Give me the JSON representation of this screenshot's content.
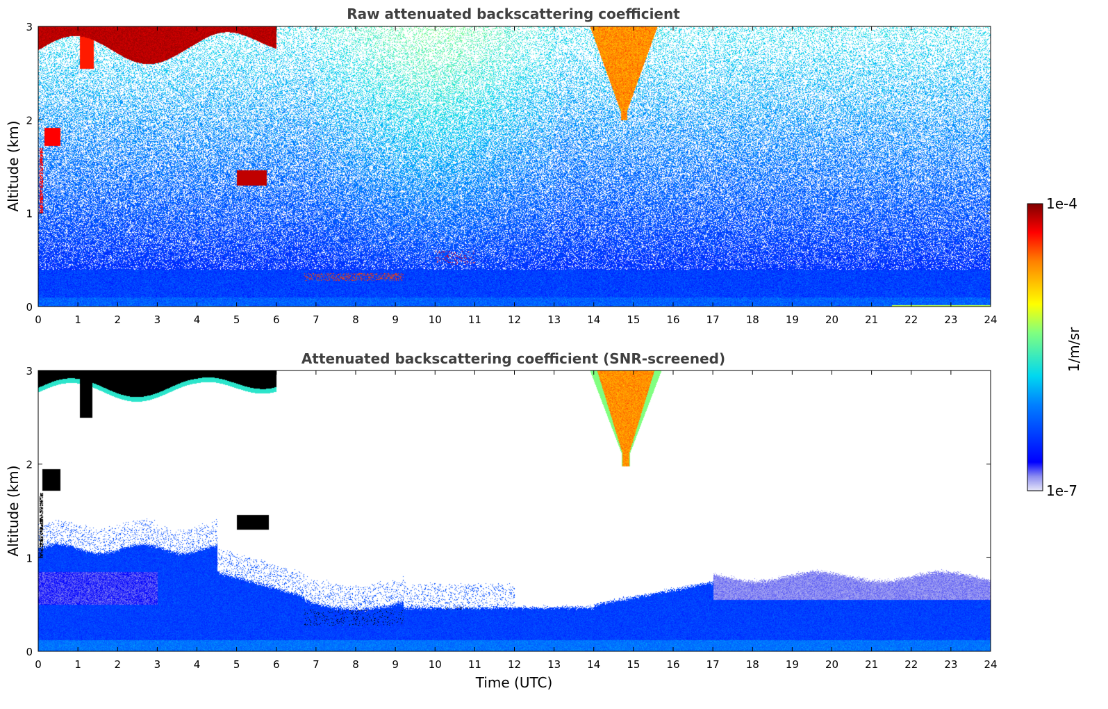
{
  "chart_data": [
    {
      "type": "heatmap",
      "title": "Raw attenuated backscattering coefficient",
      "xlabel": "",
      "ylabel": "Altitude (km)",
      "xlim": [
        0,
        24
      ],
      "ylim": [
        0,
        3
      ],
      "x_ticks": [
        "0",
        "1",
        "2",
        "3",
        "4",
        "5",
        "6",
        "7",
        "8",
        "9",
        "10",
        "11",
        "12",
        "13",
        "14",
        "15",
        "16",
        "17",
        "18",
        "19",
        "20",
        "21",
        "22",
        "23",
        "24"
      ],
      "y_ticks": [
        "0",
        "1",
        "2",
        "3"
      ],
      "features": [
        {
          "t": [
            0.0,
            6.0
          ],
          "z": [
            2.75,
            3.0
          ],
          "level": 0.95,
          "note": "dense cloud near 3 km"
        },
        {
          "t": [
            14.0,
            15.7
          ],
          "z": [
            2.0,
            3.0
          ],
          "level": 0.8,
          "note": "precipitating cloud, orange-red"
        },
        {
          "t": [
            5.0,
            5.7
          ],
          "z": [
            1.3,
            1.45
          ],
          "level": 0.95,
          "note": "small cloud near 1.4 km"
        },
        {
          "t": [
            0.1,
            0.6
          ],
          "z": [
            1.7,
            1.9
          ],
          "level": 0.9,
          "note": "cloud near 1.8 km"
        },
        {
          "t": [
            0.0,
            24.0
          ],
          "z": [
            0.0,
            0.4
          ],
          "level": 0.2,
          "note": "boundary-layer aerosol, blue"
        }
      ]
    },
    {
      "type": "heatmap",
      "title": "Attenuated backscattering coefficient (SNR-screened)",
      "xlabel": "Time (UTC)",
      "ylabel": "Altitude (km)",
      "xlim": [
        0,
        24
      ],
      "ylim": [
        0,
        3
      ],
      "x_ticks": [
        "0",
        "1",
        "2",
        "3",
        "4",
        "5",
        "6",
        "7",
        "8",
        "9",
        "10",
        "11",
        "12",
        "13",
        "14",
        "15",
        "16",
        "17",
        "18",
        "19",
        "20",
        "21",
        "22",
        "23",
        "24"
      ],
      "y_ticks": [
        "0",
        "1",
        "2",
        "3"
      ],
      "features": [
        {
          "t": [
            0.0,
            6.0
          ],
          "z": [
            2.8,
            3.0
          ],
          "level": 1.0,
          "note": "cloud shown black (above colour range)"
        },
        {
          "t": [
            14.0,
            16.0
          ],
          "z": [
            2.0,
            3.0
          ],
          "level": 0.78,
          "note": "precipitating cloud"
        },
        {
          "t": [
            5.0,
            5.8
          ],
          "z": [
            1.3,
            1.45
          ],
          "level": 1.0,
          "note": "small cloud"
        },
        {
          "t": [
            0.0,
            24.0
          ],
          "z": [
            0.0,
            1.1
          ],
          "level": 0.2,
          "note": "screened aerosol layer; top ~1.1 km at 0-4.5 UTC, ~0.5 km at 9-24 UTC"
        }
      ]
    }
  ],
  "colorbar": {
    "label": "1/m/sr",
    "max_label": "1e-4",
    "min_label": "1e-7",
    "range": [
      "1e-7",
      "1e-4"
    ],
    "colormap": "jet"
  }
}
